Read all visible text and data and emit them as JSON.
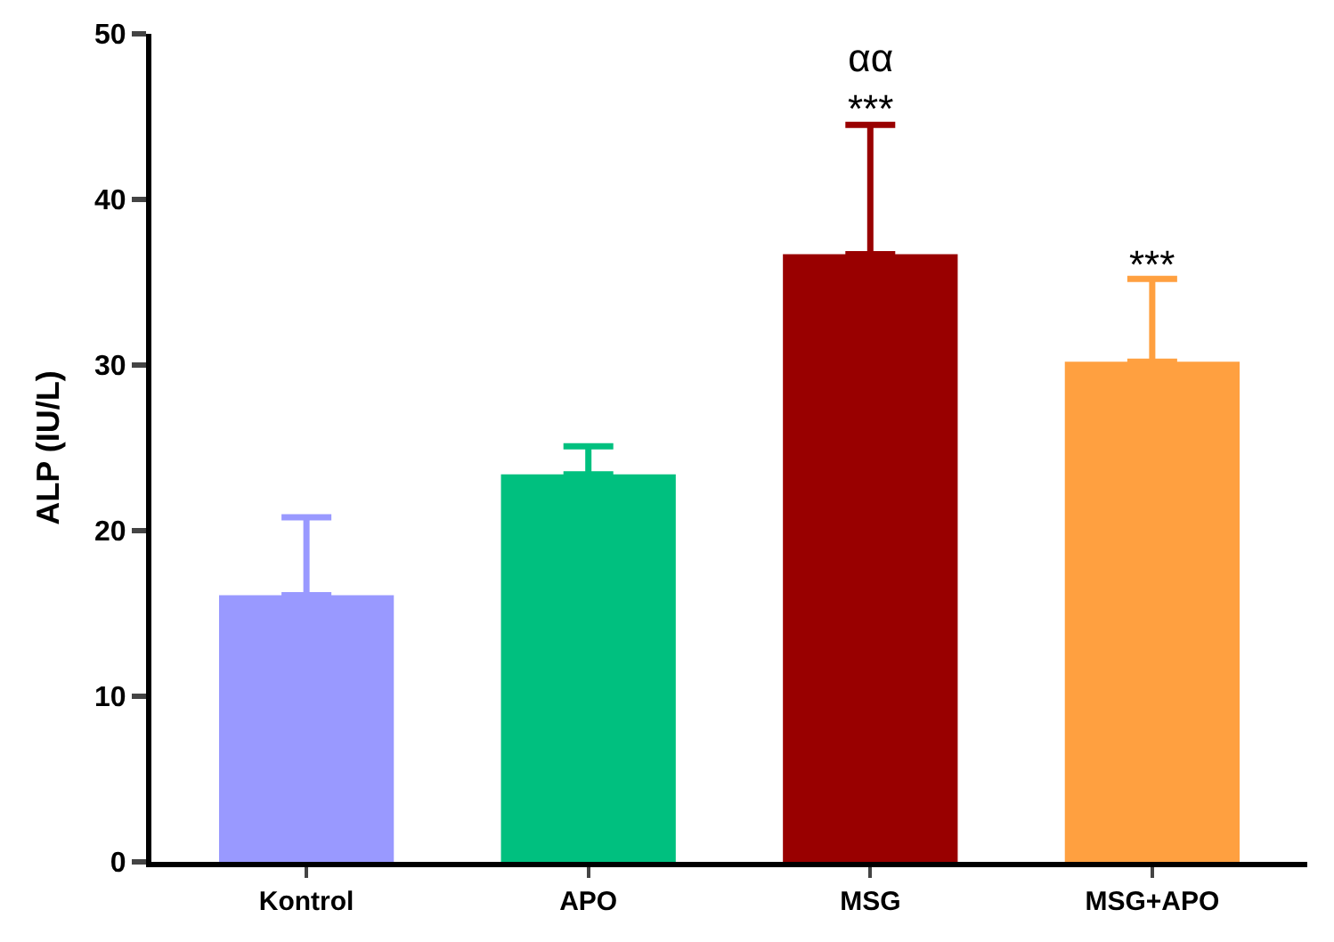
{
  "chart_data": {
    "type": "bar",
    "ylabel": "ALP (IU/L)",
    "categories": [
      "Kontrol",
      "APO",
      "MSG",
      "MSG+APO"
    ],
    "values": [
      16.1,
      23.4,
      36.7,
      30.2
    ],
    "colors": [
      "#9999ff",
      "#00c07f",
      "#990000",
      "#ffa040"
    ],
    "errors": [
      [
        16.1,
        20.8
      ],
      [
        23.4,
        25.1
      ],
      [
        36.7,
        44.5
      ],
      [
        30.2,
        35.2
      ]
    ],
    "ylim": [
      0,
      50
    ],
    "yticks": [
      0,
      10,
      20,
      30,
      40,
      50
    ],
    "legend": false,
    "annotations": [
      {
        "text": "αα\n***",
        "x": "MSG",
        "y": 44.5
      },
      {
        "text": "***",
        "x": "MSG+APO",
        "y": 35.2
      }
    ]
  }
}
